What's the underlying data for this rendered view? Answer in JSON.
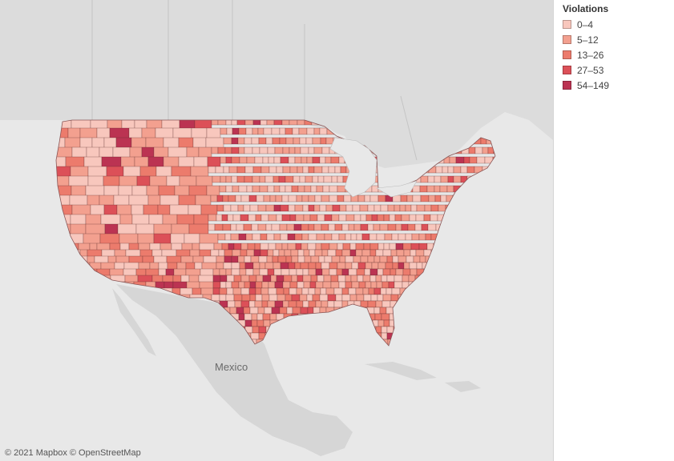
{
  "legend": {
    "title": "Violations",
    "items": [
      {
        "label": "0–4",
        "color": "#f8c7bd"
      },
      {
        "label": "5–12",
        "color": "#f3a08f"
      },
      {
        "label": "13–26",
        "color": "#ec7b6c"
      },
      {
        "label": "27–53",
        "color": "#dc5058"
      },
      {
        "label": "54–149",
        "color": "#bb3352"
      }
    ]
  },
  "map": {
    "place_label": "Mexico",
    "attribution": "© 2021 Mapbox © OpenStreetMap",
    "land_color": "#d6d6d6",
    "water_color": "#e8e8e8",
    "border_color": "#5a2a2a"
  }
}
